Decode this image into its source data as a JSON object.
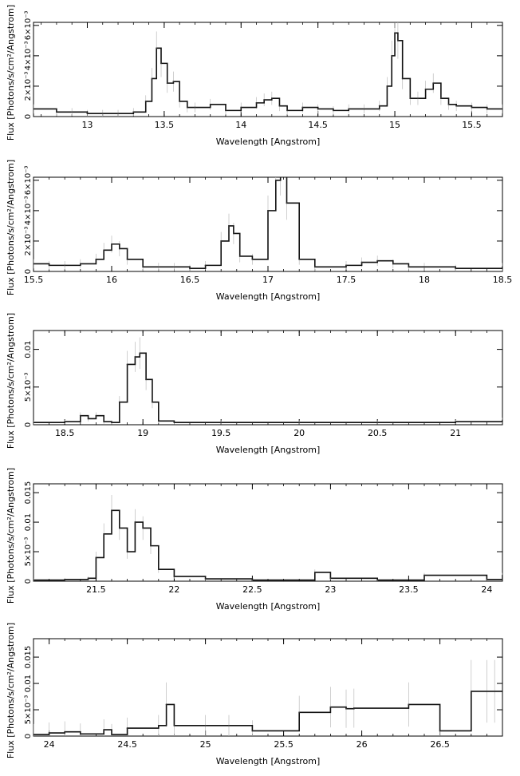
{
  "chart_data": [
    {
      "type": "line",
      "xlabel": "Wavelength [Angstrom]",
      "ylabel": "Flux [Photons/s/cm²/Angstrom]",
      "xlim": [
        12.65,
        15.7
      ],
      "ylim": [
        0,
        0.0062
      ],
      "xticks": [
        13,
        13.5,
        14,
        14.5,
        15,
        15.5
      ],
      "xtick_labels": [
        "13",
        "13.5",
        "14",
        "14.5",
        "15",
        "15.5"
      ],
      "yticks": [
        0,
        0.002,
        0.004,
        0.006
      ],
      "ytick_labels": [
        "0",
        "2×10⁻³",
        "4×10⁻³",
        "6×10⁻³"
      ],
      "series": [
        {
          "x": [
            12.65,
            12.8,
            12.9,
            13.0,
            13.1,
            13.2,
            13.3,
            13.38,
            13.42,
            13.45,
            13.48,
            13.52,
            13.56,
            13.6,
            13.65,
            13.7,
            13.8,
            13.9,
            14.0,
            14.1,
            14.15,
            14.2,
            14.25,
            14.3,
            14.4,
            14.5,
            14.6,
            14.7,
            14.8,
            14.9,
            14.95,
            14.98,
            15.0,
            15.02,
            15.05,
            15.1,
            15.15,
            15.2,
            15.25,
            15.3,
            15.35,
            15.4,
            15.5,
            15.6,
            15.7
          ],
          "y": [
            0.0005,
            0.0003,
            0.0003,
            0.0002,
            0.0002,
            0.0002,
            0.0003,
            0.001,
            0.0025,
            0.0045,
            0.0035,
            0.0022,
            0.0023,
            0.001,
            0.0006,
            0.0006,
            0.0008,
            0.0004,
            0.0006,
            0.0009,
            0.0011,
            0.0012,
            0.0007,
            0.0004,
            0.0006,
            0.0005,
            0.0004,
            0.0005,
            0.0005,
            0.0007,
            0.002,
            0.004,
            0.0055,
            0.005,
            0.0025,
            0.0012,
            0.0012,
            0.0018,
            0.0022,
            0.0012,
            0.0008,
            0.0007,
            0.0006,
            0.0005,
            0.0005
          ]
        }
      ]
    },
    {
      "type": "line",
      "xlabel": "Wavelength [Angstrom]",
      "ylabel": "Flux [Photons/s/cm²/Angstrom]",
      "xlim": [
        15.5,
        18.5
      ],
      "ylim": [
        0,
        0.0062
      ],
      "xticks": [
        15.5,
        16,
        16.5,
        17,
        17.5,
        18,
        18.5
      ],
      "xtick_labels": [
        "15.5",
        "16",
        "16.5",
        "17",
        "17.5",
        "18",
        "18.5"
      ],
      "yticks": [
        0,
        0.002,
        0.004,
        0.006
      ],
      "ytick_labels": [
        "0",
        "2×10⁻³",
        "4×10⁻³",
        "6×10⁻³"
      ],
      "series": [
        {
          "x": [
            15.5,
            15.6,
            15.7,
            15.8,
            15.9,
            15.95,
            16.0,
            16.05,
            16.1,
            16.2,
            16.3,
            16.4,
            16.5,
            16.6,
            16.7,
            16.75,
            16.78,
            16.82,
            16.9,
            17.0,
            17.05,
            17.08,
            17.12,
            17.2,
            17.3,
            17.5,
            17.6,
            17.7,
            17.8,
            17.9,
            18.0,
            18.2,
            18.5
          ],
          "y": [
            0.0005,
            0.0004,
            0.0004,
            0.0005,
            0.0008,
            0.0014,
            0.0018,
            0.0015,
            0.0008,
            0.0003,
            0.0003,
            0.0003,
            0.0002,
            0.0004,
            0.002,
            0.003,
            0.0025,
            0.001,
            0.0008,
            0.004,
            0.006,
            0.0065,
            0.0045,
            0.0008,
            0.0003,
            0.0004,
            0.0006,
            0.0007,
            0.0005,
            0.0003,
            0.0003,
            0.0002,
            0.0003
          ]
        }
      ]
    },
    {
      "type": "line",
      "xlabel": "Wavelength [Angstrom]",
      "ylabel": "Flux [Photons/s/cm²/Angstrom]",
      "xlim": [
        18.3,
        21.3
      ],
      "ylim": [
        0,
        0.0125
      ],
      "xticks": [
        18.5,
        19,
        19.5,
        20,
        20.5,
        21
      ],
      "xtick_labels": [
        "18.5",
        "19",
        "19.5",
        "20",
        "20.5",
        "21"
      ],
      "yticks": [
        0,
        0.005,
        0.01
      ],
      "ytick_labels": [
        "0",
        "5×10⁻³",
        "0.01"
      ],
      "series": [
        {
          "x": [
            18.3,
            18.5,
            18.6,
            18.65,
            18.7,
            18.75,
            18.8,
            18.85,
            18.9,
            18.95,
            18.98,
            19.02,
            19.06,
            19.1,
            19.2,
            19.5,
            20.0,
            20.5,
            21.0,
            21.3
          ],
          "y": [
            0.0003,
            0.0004,
            0.0012,
            0.0008,
            0.0012,
            0.0004,
            0.0003,
            0.003,
            0.008,
            0.009,
            0.0095,
            0.006,
            0.003,
            0.0005,
            0.0003,
            0.0003,
            0.0003,
            0.0003,
            0.0004,
            0.0006
          ]
        }
      ]
    },
    {
      "type": "line",
      "xlabel": "Wavelength [Angstrom]",
      "ylabel": "Flux [Photons/s/cm²/Angstrom]",
      "xlim": [
        21.1,
        24.1
      ],
      "ylim": [
        0,
        0.0165
      ],
      "xticks": [
        21.5,
        22,
        22.5,
        23,
        23.5,
        24
      ],
      "xtick_labels": [
        "21.5",
        "22",
        "22.5",
        "23",
        "23.5",
        "24"
      ],
      "yticks": [
        0,
        0.005,
        0.01,
        0.015
      ],
      "ytick_labels": [
        "0",
        "5×10⁻³",
        "0.01",
        "0.015"
      ],
      "series": [
        {
          "x": [
            21.1,
            21.3,
            21.45,
            21.5,
            21.55,
            21.6,
            21.65,
            21.7,
            21.75,
            21.8,
            21.85,
            21.9,
            22.0,
            22.2,
            22.5,
            22.9,
            23.0,
            23.3,
            23.6,
            24.0,
            24.1
          ],
          "y": [
            0.0002,
            0.0003,
            0.0005,
            0.004,
            0.008,
            0.012,
            0.009,
            0.005,
            0.01,
            0.009,
            0.006,
            0.002,
            0.0008,
            0.0004,
            0.0002,
            0.0015,
            0.0005,
            0.0002,
            0.001,
            0.0003,
            0.001
          ]
        }
      ]
    },
    {
      "type": "line",
      "xlabel": "Wavelength [Angstrom]",
      "ylabel": "Flux [Photons/s/cm²/Angstrom]",
      "xlim": [
        23.9,
        26.9
      ],
      "ylim": [
        0,
        0.0185
      ],
      "xticks": [
        24,
        24.5,
        25,
        25.5,
        26,
        26.5
      ],
      "xtick_labels": [
        "24",
        "24.5",
        "25",
        "25.5",
        "26",
        "26.5"
      ],
      "yticks": [
        0,
        0.005,
        0.01,
        0.015
      ],
      "ytick_labels": [
        "0",
        "5×10⁻³",
        "0.01",
        "0.015"
      ],
      "series": [
        {
          "x": [
            23.9,
            24.0,
            24.1,
            24.2,
            24.35,
            24.4,
            24.5,
            24.7,
            24.75,
            24.8,
            25.0,
            25.15,
            25.3,
            25.6,
            25.8,
            25.9,
            25.95,
            26.3,
            26.5,
            26.7,
            26.8,
            26.85
          ],
          "y": [
            0.0003,
            0.0006,
            0.0008,
            0.0004,
            0.0012,
            0.0003,
            0.0015,
            0.002,
            0.006,
            0.002,
            0.002,
            0.002,
            0.001,
            0.0045,
            0.0055,
            0.0052,
            0.0053,
            0.006,
            0.001,
            0.0085,
            0.0085,
            0.0085
          ]
        }
      ],
      "error_bars": true
    }
  ]
}
